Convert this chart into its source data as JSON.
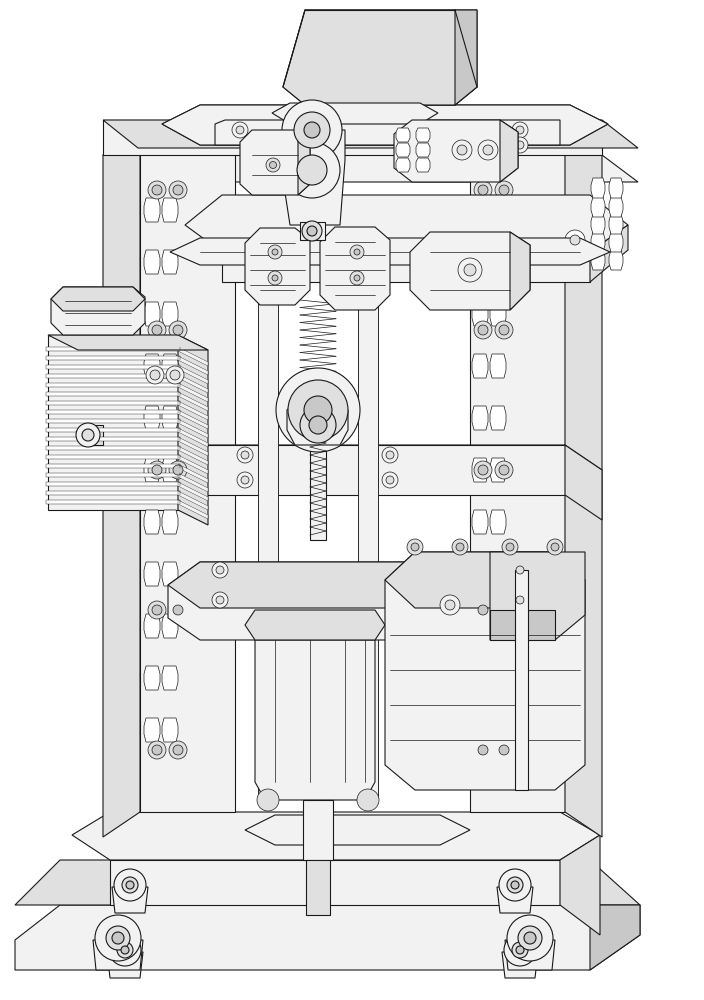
{
  "bg": "#ffffff",
  "lc": "#1a1a1a",
  "fc_white": "#ffffff",
  "fc_light": "#f2f2f2",
  "fc_mid": "#e0e0e0",
  "fc_dark": "#c8c8c8",
  "fc_darker": "#b0b0b0",
  "lw": 0.8,
  "lw_thin": 0.5,
  "lw_thick": 1.2
}
